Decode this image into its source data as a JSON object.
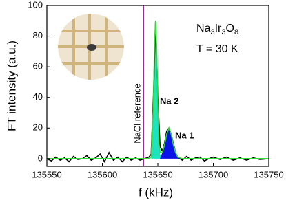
{
  "chart_data": {
    "type": "line",
    "xlabel": "f (kHz)",
    "ylabel": "FT intensity (a.u.)",
    "xlim": [
      135550,
      135750
    ],
    "xticks": [
      135550,
      135600,
      135650,
      135700,
      135750
    ],
    "ylim": [
      -5,
      100
    ],
    "yticks": [
      0,
      20,
      40,
      60,
      80,
      100
    ],
    "formula": [
      "Na",
      "3",
      "Ir",
      "3",
      "O",
      "8"
    ],
    "temperature": "T = 30 K",
    "reference": {
      "label": "NaCl reference",
      "x": 135637,
      "color": "#800080"
    },
    "series": [
      {
        "name": "Na 2",
        "kind": "area",
        "color": "#1ee3c0",
        "label_color": "#35d6d0",
        "x": [
          135644,
          135646,
          135647,
          135648,
          135649,
          135650,
          135651,
          135652,
          135654
        ],
        "values": [
          0,
          35,
          75,
          90,
          70,
          32,
          10,
          3,
          0
        ]
      },
      {
        "name": "Na 1",
        "kind": "area",
        "color": "#0a14e6",
        "label_color": "#0a14e6",
        "x": [
          135652,
          135654,
          135656,
          135658,
          135660,
          135662,
          135664,
          135666,
          135668,
          135670
        ],
        "values": [
          0,
          4,
          9,
          16,
          20,
          16,
          9,
          4,
          1,
          0
        ]
      },
      {
        "kind": "line",
        "color": "#000000",
        "x": [
          135550,
          135554,
          135558,
          135562,
          135566,
          135570,
          135574,
          135578,
          135582,
          135586,
          135590,
          135594,
          135598,
          135602,
          135606,
          135610,
          135614,
          135618,
          135622,
          135626,
          135630,
          135634,
          135638,
          135642,
          135644,
          135646,
          135648,
          135650,
          135652,
          135654,
          135656,
          135658,
          135660,
          135662,
          135664,
          135666,
          135668,
          135672,
          135676,
          135680,
          135684,
          135688,
          135692,
          135696,
          135700,
          135706,
          135712,
          135718,
          135724,
          135730,
          135736,
          135742,
          135750
        ],
        "values": [
          0,
          -1.5,
          1,
          -1,
          0.5,
          -2,
          1.5,
          -0.5,
          0,
          2,
          -1,
          0.5,
          3,
          -2,
          4,
          -1,
          1,
          -2,
          1,
          -1,
          0.5,
          -1,
          0,
          1,
          3,
          40,
          90,
          40,
          8,
          5,
          10,
          18,
          20,
          16,
          10,
          4,
          1,
          -1,
          1.5,
          -1,
          0.5,
          1,
          -1.5,
          0,
          1,
          -0.5,
          1,
          -1,
          0.5,
          -1,
          0.5,
          -0.5,
          0
        ]
      },
      {
        "kind": "line",
        "color": "#33dd33",
        "x": [
          135550,
          135642,
          135644,
          135646,
          135647,
          135648,
          135649,
          135650,
          135651,
          135652,
          135654,
          135656,
          135658,
          135660,
          135662,
          135664,
          135666,
          135668,
          135672,
          135750
        ],
        "values": [
          0,
          0,
          1,
          35,
          75,
          90,
          70,
          32,
          10,
          4,
          4,
          9,
          16,
          20,
          16,
          9,
          4,
          1,
          0,
          0
        ]
      }
    ]
  }
}
